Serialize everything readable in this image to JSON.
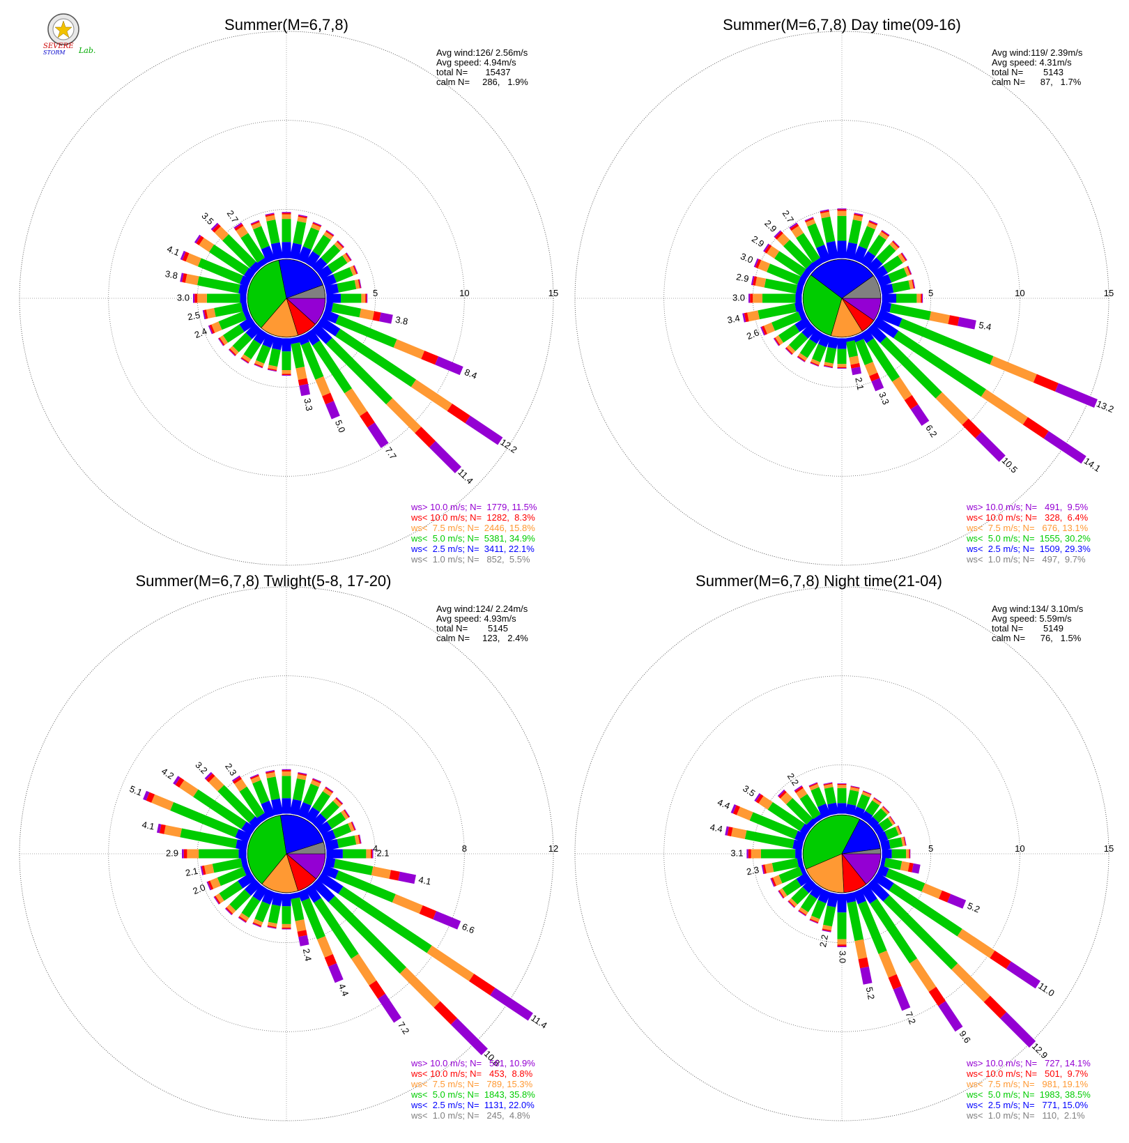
{
  "logo": {
    "line1": "SEVERE",
    "line2": "STORM",
    "line3": "Lab.",
    "colors": {
      "s1": "#cc0000",
      "s2": "#0000cc",
      "lab": "#00aa00"
    }
  },
  "colors": {
    "cat_gt10": "#9400d3",
    "cat_lt10": "#ff0000",
    "cat_lt75": "#ff9933",
    "cat_lt5": "#00cc00",
    "cat_lt25": "#0000ff",
    "cat_lt1": "#808080"
  },
  "chart_data": [
    {
      "type": "wind-rose",
      "title": "Summer(M=6,7,8)",
      "radial_ticks": [
        "5",
        "10",
        "15"
      ],
      "rmax": 15,
      "stats": [
        "Avg wind:126/ 2.56m/s",
        "Avg speed: 4.94m/s",
        "total N=       15437",
        "calm N=     286,   1.9%"
      ],
      "legend": [
        "ws> 10.0 m/s; N=  1779, 11.5%",
        "ws< 10.0 m/s; N=  1282,  8.3%",
        "ws<  7.5 m/s; N=  2446, 15.8%",
        "ws<  5.0 m/s; N=  5381, 34.9%",
        "ws<  2.5 m/s; N=  3411, 22.1%",
        "ws<  1.0 m/s; N=   852,  5.5%"
      ],
      "pie_percent": [
        11.5,
        8.3,
        15.8,
        34.9,
        22.1,
        5.5
      ],
      "labels": [
        {
          "dir": 292.5,
          "text": "4.1"
        },
        {
          "dir": 315,
          "text": "3.5"
        },
        {
          "dir": 326.25,
          "text": "2.7"
        },
        {
          "dir": 281.25,
          "text": "3.8"
        },
        {
          "dir": 270,
          "text": "3.0"
        },
        {
          "dir": 258.75,
          "text": "2.5"
        },
        {
          "dir": 247.5,
          "text": "2.4"
        },
        {
          "dir": 101.25,
          "text": "3.8"
        },
        {
          "dir": 112.5,
          "text": "8.4"
        },
        {
          "dir": 123.75,
          "text": "12.2"
        },
        {
          "dir": 135,
          "text": "11.4"
        },
        {
          "dir": 146.25,
          "text": "7.7"
        },
        {
          "dir": 157.5,
          "text": "5.0"
        },
        {
          "dir": 168.75,
          "text": "3.3"
        }
      ],
      "sectors": [
        {
          "dir": 0,
          "total": 2.6
        },
        {
          "dir": 11.25,
          "total": 2.5
        },
        {
          "dir": 22.5,
          "total": 2.3
        },
        {
          "dir": 33.75,
          "total": 2.2
        },
        {
          "dir": 45,
          "total": 2.1
        },
        {
          "dir": 56.25,
          "total": 2.0
        },
        {
          "dir": 67.5,
          "total": 2.0
        },
        {
          "dir": 78.75,
          "total": 2.0
        },
        {
          "dir": 90,
          "total": 2.3
        },
        {
          "dir": 101.25,
          "total": 3.8
        },
        {
          "dir": 112.5,
          "total": 8.4
        },
        {
          "dir": 123.75,
          "total": 12.2
        },
        {
          "dir": 135,
          "total": 11.4
        },
        {
          "dir": 146.25,
          "total": 7.7
        },
        {
          "dir": 157.5,
          "total": 5.0
        },
        {
          "dir": 168.75,
          "total": 3.3
        },
        {
          "dir": 180,
          "total": 2.1
        },
        {
          "dir": 191.25,
          "total": 1.9
        },
        {
          "dir": 202.5,
          "total": 1.9
        },
        {
          "dir": 213.75,
          "total": 2.0
        },
        {
          "dir": 225,
          "total": 2.1
        },
        {
          "dir": 236.25,
          "total": 2.2
        },
        {
          "dir": 247.5,
          "total": 2.4
        },
        {
          "dir": 258.75,
          "total": 2.5
        },
        {
          "dir": 270,
          "total": 3.0
        },
        {
          "dir": 281.25,
          "total": 3.8
        },
        {
          "dir": 292.5,
          "total": 4.1
        },
        {
          "dir": 303.75,
          "total": 3.8
        },
        {
          "dir": 315,
          "total": 3.5
        },
        {
          "dir": 326.25,
          "total": 2.7
        },
        {
          "dir": 337.5,
          "total": 2.4
        },
        {
          "dir": 348.75,
          "total": 2.6
        }
      ]
    },
    {
      "type": "wind-rose",
      "title": "Summer(M=6,7,8) Day time(09-16)",
      "radial_ticks": [
        "5",
        "10",
        "15"
      ],
      "rmax": 15,
      "stats": [
        "Avg wind:119/ 2.39m/s",
        "Avg speed: 4.31m/s",
        "total N=        5143",
        "calm N=      87,   1.7%"
      ],
      "legend": [
        "ws> 10.0 m/s; N=   491,  9.5%",
        "ws< 10.0 m/s; N=   328,  6.4%",
        "ws<  7.5 m/s; N=   676, 13.1%",
        "ws<  5.0 m/s; N=  1555, 30.2%",
        "ws<  2.5 m/s; N=  1509, 29.3%",
        "ws<  1.0 m/s; N=   497,  9.7%"
      ],
      "pie_percent": [
        9.5,
        6.4,
        13.1,
        30.2,
        29.3,
        9.7
      ],
      "labels": [
        {
          "dir": 292.5,
          "text": "3.0"
        },
        {
          "dir": 303.75,
          "text": "2.9"
        },
        {
          "dir": 315,
          "text": "2.9"
        },
        {
          "dir": 326.25,
          "text": "2.7"
        },
        {
          "dir": 281.25,
          "text": "2.9"
        },
        {
          "dir": 270,
          "text": "3.0"
        },
        {
          "dir": 258.75,
          "text": "3.4"
        },
        {
          "dir": 247.5,
          "text": "2.6"
        },
        {
          "dir": 101.25,
          "text": "5.4"
        },
        {
          "dir": 112.5,
          "text": "13.2"
        },
        {
          "dir": 123.75,
          "text": "14.1"
        },
        {
          "dir": 135,
          "text": "10.5"
        },
        {
          "dir": 146.25,
          "text": "6.2"
        },
        {
          "dir": 157.5,
          "text": "3.3"
        },
        {
          "dir": 168.75,
          "text": "2.1"
        }
      ],
      "sectors": [
        {
          "dir": 0,
          "total": 2.8
        },
        {
          "dir": 11.25,
          "total": 2.6
        },
        {
          "dir": 22.5,
          "total": 2.4
        },
        {
          "dir": 33.75,
          "total": 2.2
        },
        {
          "dir": 45,
          "total": 2.1
        },
        {
          "dir": 56.25,
          "total": 2.0
        },
        {
          "dir": 67.5,
          "total": 1.9
        },
        {
          "dir": 78.75,
          "total": 1.9
        },
        {
          "dir": 90,
          "total": 2.3
        },
        {
          "dir": 101.25,
          "total": 5.4
        },
        {
          "dir": 112.5,
          "total": 13.2
        },
        {
          "dir": 123.75,
          "total": 14.1
        },
        {
          "dir": 135,
          "total": 10.5
        },
        {
          "dir": 146.25,
          "total": 6.2
        },
        {
          "dir": 157.5,
          "total": 3.3
        },
        {
          "dir": 168.75,
          "total": 2.1
        },
        {
          "dir": 180,
          "total": 1.7
        },
        {
          "dir": 191.25,
          "total": 1.7
        },
        {
          "dir": 202.5,
          "total": 1.8
        },
        {
          "dir": 213.75,
          "total": 1.9
        },
        {
          "dir": 225,
          "total": 2.0
        },
        {
          "dir": 236.25,
          "total": 2.2
        },
        {
          "dir": 247.5,
          "total": 2.6
        },
        {
          "dir": 258.75,
          "total": 3.4
        },
        {
          "dir": 270,
          "total": 3.0
        },
        {
          "dir": 281.25,
          "total": 2.9
        },
        {
          "dir": 292.5,
          "total": 3.0
        },
        {
          "dir": 303.75,
          "total": 2.9
        },
        {
          "dir": 315,
          "total": 2.9
        },
        {
          "dir": 326.25,
          "total": 2.7
        },
        {
          "dir": 337.5,
          "total": 2.6
        },
        {
          "dir": 348.75,
          "total": 2.8
        }
      ]
    },
    {
      "type": "wind-rose",
      "title": "Summer(M=6,7,8) Twlight(5-8, 17-20)",
      "radial_ticks": [
        "4",
        "8",
        "12"
      ],
      "rmax": 12,
      "stats": [
        "Avg wind:124/ 2.24m/s",
        "Avg speed: 4.93m/s",
        "total N=        5145",
        "calm N=     123,   2.4%"
      ],
      "legend": [
        "ws> 10.0 m/s; N=   561, 10.9%",
        "ws< 10.0 m/s; N=   453,  8.8%",
        "ws<  7.5 m/s; N=   789, 15.3%",
        "ws<  5.0 m/s; N=  1843, 35.8%",
        "ws<  2.5 m/s; N=  1131, 22.0%",
        "ws<  1.0 m/s; N=   245,  4.8%"
      ],
      "pie_percent": [
        10.9,
        8.8,
        15.3,
        35.8,
        22.0,
        4.8
      ],
      "labels": [
        {
          "dir": 292.5,
          "text": "5.1"
        },
        {
          "dir": 303.75,
          "text": "4.2"
        },
        {
          "dir": 315,
          "text": "3.2"
        },
        {
          "dir": 326.25,
          "text": "2.3"
        },
        {
          "dir": 281.25,
          "text": "4.1"
        },
        {
          "dir": 270,
          "text": "2.9"
        },
        {
          "dir": 258.75,
          "text": "2.1"
        },
        {
          "dir": 247.5,
          "text": "2.0"
        },
        {
          "dir": 90,
          "text": "2.1"
        },
        {
          "dir": 101.25,
          "text": "4.1"
        },
        {
          "dir": 112.5,
          "text": "6.6"
        },
        {
          "dir": 123.75,
          "text": "11.4"
        },
        {
          "dir": 135,
          "text": "10.8"
        },
        {
          "dir": 146.25,
          "text": "7.2"
        },
        {
          "dir": 157.5,
          "text": "4.4"
        },
        {
          "dir": 168.75,
          "text": "2.4"
        }
      ],
      "sectors": [
        {
          "dir": 0,
          "total": 2.0
        },
        {
          "dir": 11.25,
          "total": 1.9
        },
        {
          "dir": 22.5,
          "total": 1.8
        },
        {
          "dir": 33.75,
          "total": 1.7
        },
        {
          "dir": 45,
          "total": 1.6
        },
        {
          "dir": 56.25,
          "total": 1.5
        },
        {
          "dir": 67.5,
          "total": 1.5
        },
        {
          "dir": 78.75,
          "total": 1.6
        },
        {
          "dir": 90,
          "total": 2.1
        },
        {
          "dir": 101.25,
          "total": 4.1
        },
        {
          "dir": 112.5,
          "total": 6.6
        },
        {
          "dir": 123.75,
          "total": 11.4
        },
        {
          "dir": 135,
          "total": 10.8
        },
        {
          "dir": 146.25,
          "total": 7.2
        },
        {
          "dir": 157.5,
          "total": 4.4
        },
        {
          "dir": 168.75,
          "total": 2.4
        },
        {
          "dir": 180,
          "total": 1.6
        },
        {
          "dir": 191.25,
          "total": 1.6
        },
        {
          "dir": 202.5,
          "total": 1.7
        },
        {
          "dir": 213.75,
          "total": 1.8
        },
        {
          "dir": 225,
          "total": 1.9
        },
        {
          "dir": 236.25,
          "total": 2.0
        },
        {
          "dir": 247.5,
          "total": 2.0
        },
        {
          "dir": 258.75,
          "total": 2.1
        },
        {
          "dir": 270,
          "total": 2.9
        },
        {
          "dir": 281.25,
          "total": 4.1
        },
        {
          "dir": 292.5,
          "total": 5.1
        },
        {
          "dir": 303.75,
          "total": 4.2
        },
        {
          "dir": 315,
          "total": 3.2
        },
        {
          "dir": 326.25,
          "total": 2.3
        },
        {
          "dir": 337.5,
          "total": 2.0
        },
        {
          "dir": 348.75,
          "total": 2.0
        }
      ]
    },
    {
      "type": "wind-rose",
      "title": "Summer(M=6,7,8) Night time(21-04)",
      "radial_ticks": [
        "5",
        "10",
        "15"
      ],
      "rmax": 15,
      "stats": [
        "Avg wind:134/ 3.10m/s",
        "Avg speed: 5.59m/s",
        "total N=        5149",
        "calm N=      76,   1.5%"
      ],
      "legend": [
        "ws> 10.0 m/s; N=   727, 14.1%",
        "ws< 10.0 m/s; N=   501,  9.7%",
        "ws<  7.5 m/s; N=   981, 19.1%",
        "ws<  5.0 m/s; N=  1983, 38.5%",
        "ws<  2.5 m/s; N=   771, 15.0%",
        "ws<  1.0 m/s; N=   110,  2.1%"
      ],
      "pie_percent": [
        14.1,
        9.7,
        19.1,
        38.5,
        15.0,
        2.1
      ],
      "labels": [
        {
          "dir": 292.5,
          "text": "4.4"
        },
        {
          "dir": 303.75,
          "text": "3.5"
        },
        {
          "dir": 326.25,
          "text": "2.2"
        },
        {
          "dir": 281.25,
          "text": "4.4"
        },
        {
          "dir": 270,
          "text": "3.1"
        },
        {
          "dir": 258.75,
          "text": "2.3"
        },
        {
          "dir": 112.5,
          "text": "5.2"
        },
        {
          "dir": 123.75,
          "text": "11.0"
        },
        {
          "dir": 135,
          "text": "12.9"
        },
        {
          "dir": 146.25,
          "text": "9.6"
        },
        {
          "dir": 157.5,
          "text": "7.2"
        },
        {
          "dir": 168.75,
          "text": "5.2"
        },
        {
          "dir": 180,
          "text": "3.0"
        },
        {
          "dir": 191.25,
          "text": "2.2"
        }
      ],
      "sectors": [
        {
          "dir": 0,
          "total": 1.7
        },
        {
          "dir": 11.25,
          "total": 1.6
        },
        {
          "dir": 22.5,
          "total": 1.5
        },
        {
          "dir": 33.75,
          "total": 1.4
        },
        {
          "dir": 45,
          "total": 1.3
        },
        {
          "dir": 56.25,
          "total": 1.2
        },
        {
          "dir": 67.5,
          "total": 1.3
        },
        {
          "dir": 78.75,
          "total": 1.4
        },
        {
          "dir": 90,
          "total": 1.6
        },
        {
          "dir": 101.25,
          "total": 2.2
        },
        {
          "dir": 112.5,
          "total": 5.2
        },
        {
          "dir": 123.75,
          "total": 11.0
        },
        {
          "dir": 135,
          "total": 12.9
        },
        {
          "dir": 146.25,
          "total": 9.6
        },
        {
          "dir": 157.5,
          "total": 7.2
        },
        {
          "dir": 168.75,
          "total": 5.2
        },
        {
          "dir": 180,
          "total": 3.0
        },
        {
          "dir": 191.25,
          "total": 2.2
        },
        {
          "dir": 202.5,
          "total": 1.9
        },
        {
          "dir": 213.75,
          "total": 1.8
        },
        {
          "dir": 225,
          "total": 1.8
        },
        {
          "dir": 236.25,
          "total": 1.9
        },
        {
          "dir": 247.5,
          "total": 2.0
        },
        {
          "dir": 258.75,
          "total": 2.3
        },
        {
          "dir": 270,
          "total": 3.1
        },
        {
          "dir": 281.25,
          "total": 4.4
        },
        {
          "dir": 292.5,
          "total": 4.4
        },
        {
          "dir": 303.75,
          "total": 3.5
        },
        {
          "dir": 315,
          "total": 2.6
        },
        {
          "dir": 326.25,
          "total": 2.2
        },
        {
          "dir": 337.5,
          "total": 2.0
        },
        {
          "dir": 348.75,
          "total": 1.8
        }
      ]
    }
  ]
}
